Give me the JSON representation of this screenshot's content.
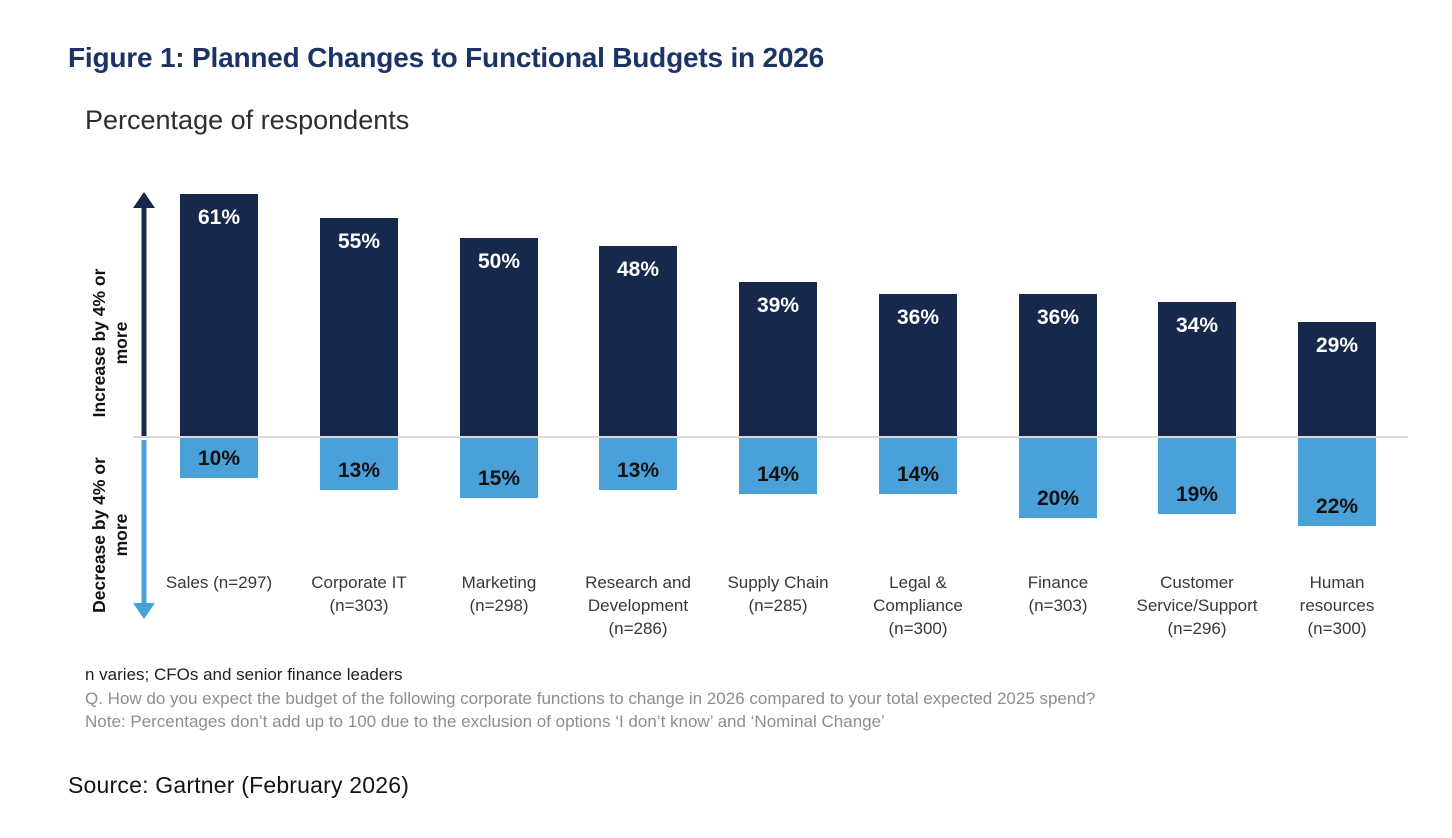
{
  "page": {
    "figure_title": "Figure 1: Planned Changes to Functional Budgets in 2026",
    "axis_title": "Percentage of respondents",
    "notes": {
      "line1": "n varies; CFOs and senior finance leaders",
      "line2": "Q. How do you expect the budget of the following corporate functions to change in 2026 compared to your total expected 2025 spend?",
      "line3": "Note: Percentages don’t add up to 100 due to the exclusion of options ‘I don’t know’ and ‘Nominal Change’"
    },
    "source": "Source: Gartner (February 2026)"
  },
  "chart_data": {
    "type": "bar",
    "subtype": "diverging-vertical-bars",
    "title": "Figure 1: Planned Changes to Functional Budgets in 2026",
    "ylabel": "Percentage of respondents",
    "value_suffix": "%",
    "grid": false,
    "legend_position": "left-axis-arrows",
    "categories": [
      "Sales (n=297)",
      "Corporate IT\n(n=303)",
      "Marketing\n(n=298)",
      "Research and\nDevelopment\n(n=286)",
      "Supply Chain\n(n=285)",
      "Legal &\nCompliance\n(n=300)",
      "Finance\n(n=303)",
      "Customer\nService/Support\n(n=296)",
      "Human\nresources\n(n=300)"
    ],
    "series": [
      {
        "name": "Increase by 4% or more",
        "direction": "up",
        "color": "#16294d",
        "label_color": "#ffffff",
        "values": [
          61,
          55,
          50,
          48,
          39,
          36,
          36,
          34,
          29
        ]
      },
      {
        "name": "Decrease by 4% or more",
        "direction": "down",
        "color": "#4aa0d8",
        "label_color": "#111111",
        "values": [
          10,
          13,
          15,
          13,
          14,
          14,
          20,
          19,
          22
        ]
      }
    ],
    "up_axis_label": "Increase by 4% or\nmore",
    "down_axis_label": "Decrease by 4% or\nmore",
    "baseline_color": "#d9d9d9"
  }
}
